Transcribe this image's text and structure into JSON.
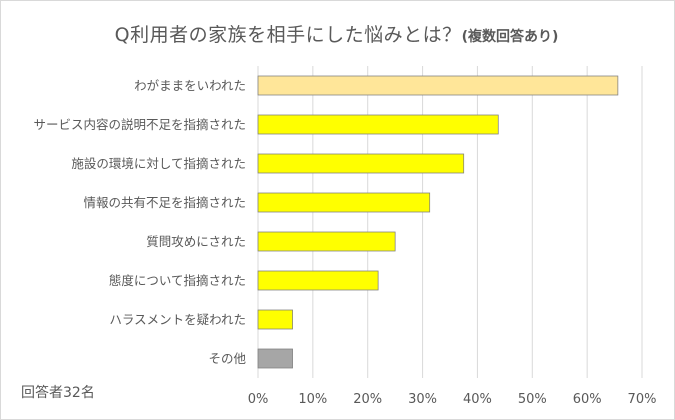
{
  "title": {
    "main": "Q利用者の家族を相手にした悩みとは？",
    "sub": "(複数回答あり)"
  },
  "note": "回答者32名",
  "chart_data": {
    "type": "bar",
    "orientation": "horizontal",
    "categories": [
      "わがままをいわれた",
      "サービス内容の説明不足を指摘された",
      "施設の環境に対して指摘された",
      "情報の共有不足を指摘された",
      "質問攻めにされた",
      "態度について指摘された",
      "ハラスメントを疑われた",
      "その他"
    ],
    "values": [
      65.6,
      43.8,
      37.5,
      31.3,
      25.0,
      21.9,
      6.3,
      6.3
    ],
    "xlim": [
      0,
      70
    ],
    "x_ticks": [
      0,
      10,
      20,
      30,
      40,
      50,
      60,
      70
    ],
    "x_tick_labels": [
      "0%",
      "10%",
      "20%",
      "30%",
      "40%",
      "50%",
      "60%",
      "70%"
    ],
    "grid": true,
    "legend": "none",
    "colors": [
      "#ffe699",
      "#ffff00",
      "#ffff00",
      "#ffff00",
      "#ffff00",
      "#ffff00",
      "#ffff00",
      "#a6a6a6"
    ],
    "bar_stroke": "#7f7f7f",
    "grid_color": "#d9d9d9",
    "text_color": "#595959"
  }
}
